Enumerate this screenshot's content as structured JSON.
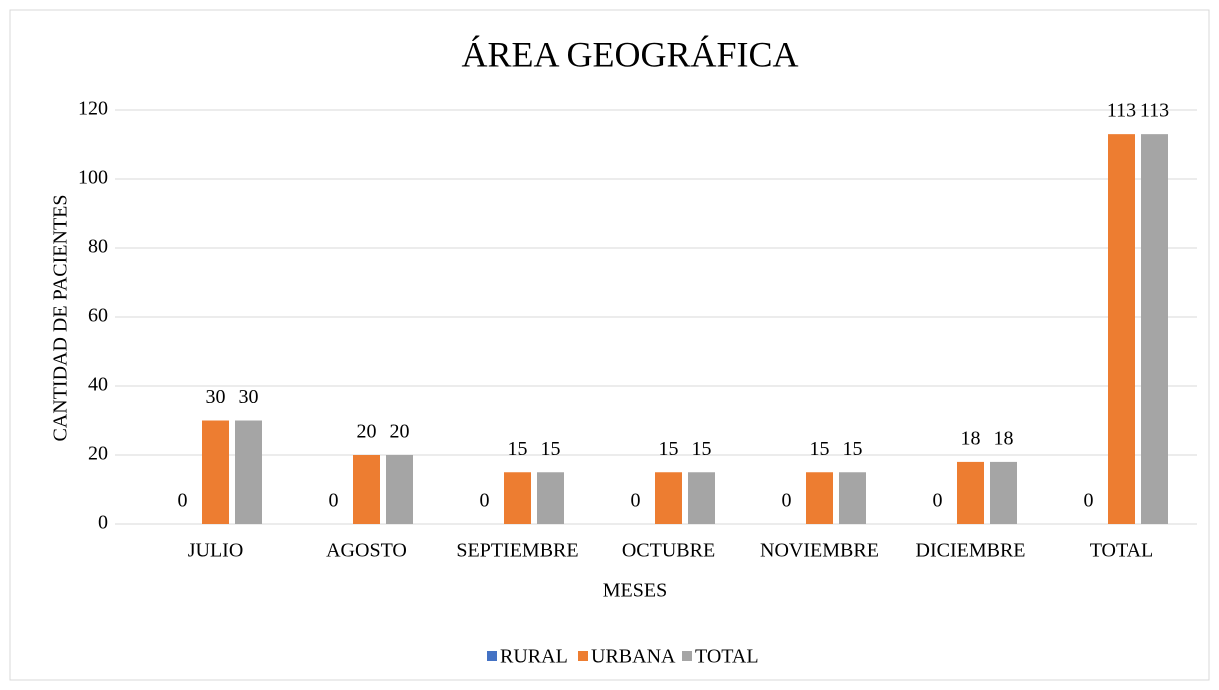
{
  "chart_data": {
    "type": "bar",
    "title": "ÁREA GEOGRÁFICA",
    "x_label": "MESES",
    "y_label": "CANTIDAD DE PACIENTES",
    "categories": [
      "JULIO",
      "AGOSTO",
      "SEPTIEMBRE",
      "OCTUBRE",
      "NOVIEMBRE",
      "DICIEMBRE",
      "TOTAL"
    ],
    "series": [
      {
        "name": "RURAL",
        "color": "#4472c4",
        "values": [
          0,
          0,
          0,
          0,
          0,
          0,
          0
        ]
      },
      {
        "name": "URBANA",
        "color": "#ed7d31",
        "values": [
          30,
          20,
          15,
          15,
          15,
          18,
          113
        ]
      },
      {
        "name": "TOTAL",
        "color": "#a5a5a5",
        "values": [
          30,
          20,
          15,
          15,
          15,
          18,
          113
        ]
      }
    ],
    "ylim": [
      0,
      120
    ],
    "yticks": [
      0,
      20,
      40,
      60,
      80,
      100,
      120
    ],
    "grid": true,
    "legend": "bottom"
  }
}
